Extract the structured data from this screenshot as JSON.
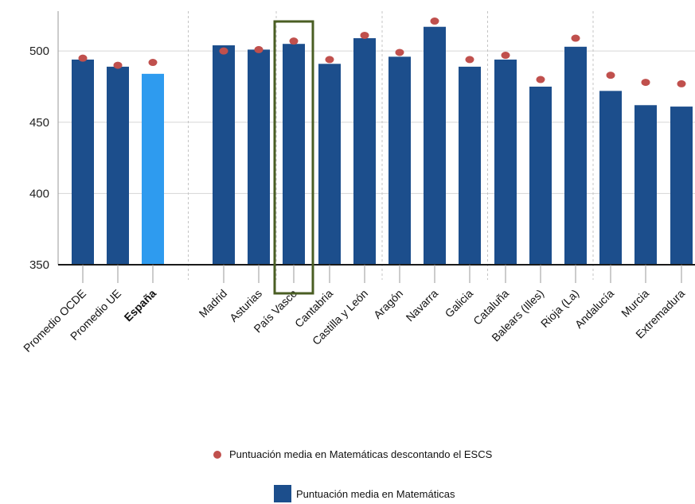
{
  "chart_data": {
    "type": "bar",
    "categories": [
      "Promedio OCDE",
      "Promedio UE",
      "España",
      "Madrid",
      "Asturias",
      "País Vasco",
      "Cantabria",
      "Castilla y León",
      "Aragón",
      "Navarra",
      "Galicia",
      "Cataluña",
      "Balears (Illes)",
      "Rioja (La)",
      "Andalucía",
      "Murcia",
      "Extremadura"
    ],
    "bold_categories": [
      "España"
    ],
    "highlighted_category": "País Vasco",
    "series": [
      {
        "name": "Puntuación media en Matemáticas",
        "kind": "bar",
        "color": "#1c4e8c",
        "special_colors": {
          "España": "#2e9bef"
        },
        "values": [
          494,
          489,
          484,
          504,
          501,
          505,
          491,
          509,
          496,
          517,
          489,
          494,
          475,
          503,
          472,
          462,
          461
        ]
      },
      {
        "name": "Puntuación media en Matemáticas descontando el ESCS",
        "kind": "marker",
        "color": "#c0504d",
        "values": [
          495,
          490,
          492,
          500,
          501,
          507,
          494,
          511,
          499,
          521,
          494,
          497,
          480,
          509,
          483,
          478,
          477
        ]
      }
    ],
    "ylim": [
      350,
      528
    ],
    "yticks": [
      350,
      400,
      450,
      500
    ],
    "grid": true,
    "group_separators_after": [
      "España",
      "Asturias",
      "Castilla y León",
      "Galicia",
      "Rioja (La)"
    ],
    "legend_position": "bottom",
    "highlight_color": "#4a5e23"
  },
  "legend": {
    "marker_label": "Puntuación media en Matemáticas descontando el ESCS",
    "bar_label": "Puntuación media en Matemáticas"
  }
}
